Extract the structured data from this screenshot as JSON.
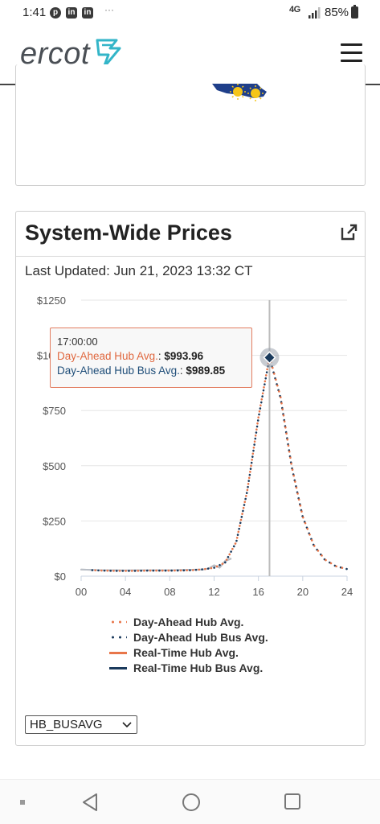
{
  "status_bar": {
    "time": "1:41",
    "notification_icons": [
      "pinterest-icon",
      "linkedin-icon",
      "linkedin-icon"
    ],
    "more": "···",
    "network": "4G",
    "battery": "85%"
  },
  "header": {
    "logo_text": "ercot",
    "menu_icon": "hamburger-menu-icon"
  },
  "prices_card": {
    "title": "System-Wide Prices",
    "external_link_icon": "external-link-icon",
    "last_updated": "Last Updated: Jun 21, 2023 13:32 CT",
    "tooltip": {
      "time": "17:00:00",
      "rows": [
        {
          "name": "Day-Ahead Hub Avg.",
          "value": "$993.96"
        },
        {
          "name": "Day-Ahead Hub Bus Avg.",
          "value": "$989.85"
        }
      ]
    },
    "select": {
      "value": "HB_BUSAVG"
    }
  },
  "chart_data": {
    "type": "line",
    "y_ticks": [
      "$0",
      "$250",
      "$500",
      "$750",
      "$1000",
      "$1250"
    ],
    "x_ticks": [
      "00",
      "04",
      "08",
      "12",
      "16",
      "20",
      "24"
    ],
    "ylim": [
      0,
      1250
    ],
    "xlim": [
      0,
      24
    ],
    "grid": true,
    "crosshair_x": 17,
    "x": [
      1,
      2,
      3,
      4,
      5,
      6,
      7,
      8,
      9,
      10,
      11,
      12,
      13,
      14,
      15,
      16,
      17,
      18,
      19,
      20,
      21,
      22,
      23,
      24
    ],
    "series": [
      {
        "name": "Day-Ahead Hub Avg.",
        "style": "dotted",
        "color": "#e8764a",
        "values": [
          27,
          25,
          24,
          24,
          24,
          25,
          25,
          25,
          26,
          27,
          31,
          38,
          62,
          155,
          390,
          720,
          994,
          810,
          500,
          270,
          140,
          75,
          45,
          32
        ]
      },
      {
        "name": "Day-Ahead Hub Bus Avg.",
        "style": "dotted",
        "color": "#1a3a5c",
        "values": [
          27,
          25,
          24,
          24,
          24,
          25,
          25,
          25,
          26,
          27,
          31,
          38,
          62,
          154,
          388,
          716,
          990,
          806,
          497,
          268,
          139,
          74,
          45,
          32
        ]
      },
      {
        "name": "Real-Time Hub Avg.",
        "style": "solid",
        "color": "#e8764a",
        "x": [
          0,
          1,
          2,
          3,
          4,
          5,
          6,
          7,
          8,
          9,
          10,
          11,
          11.5,
          12,
          12.5,
          13,
          13.5
        ],
        "values": [
          30,
          28,
          27,
          27,
          26,
          27,
          27,
          27,
          27,
          28,
          29,
          30,
          35,
          50,
          40,
          70,
          80
        ]
      },
      {
        "name": "Real-Time Hub Bus Avg.",
        "style": "solid",
        "color": "#1a3a5c",
        "x": [
          0,
          1,
          2,
          3,
          4,
          5,
          6,
          7,
          8,
          9,
          10,
          11,
          11.5,
          12,
          12.5,
          13,
          13.5
        ],
        "values": [
          30,
          28,
          27,
          27,
          26,
          27,
          27,
          27,
          27,
          28,
          29,
          30,
          34,
          48,
          38,
          68,
          78
        ]
      }
    ],
    "legend_position": "bottom"
  },
  "nav": {
    "recents": "square-icon",
    "home": "circle-icon",
    "back": "triangle-back-icon",
    "menu": "dot-icon"
  }
}
